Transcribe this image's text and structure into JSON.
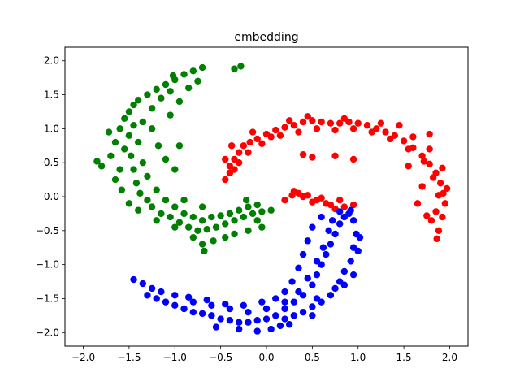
{
  "chart_data": {
    "type": "scatter",
    "title": "embedding",
    "xlabel": "",
    "ylabel": "",
    "xlim": [
      -2.2,
      2.2
    ],
    "ylim": [
      -2.2,
      2.2
    ],
    "xticks": [
      -2.0,
      -1.5,
      -1.0,
      -0.5,
      0.0,
      0.5,
      1.0,
      1.5,
      2.0
    ],
    "xtick_labels": [
      "−2.0",
      "−1.5",
      "−1.0",
      "−0.5",
      "0.0",
      "0.5",
      "1.0",
      "1.5",
      "2.0"
    ],
    "yticks": [
      -2.0,
      -1.5,
      -1.0,
      -0.5,
      0.0,
      0.5,
      1.0,
      1.5,
      2.0
    ],
    "ytick_labels": [
      "−2.0",
      "−1.5",
      "−1.0",
      "−0.5",
      "0.0",
      "0.5",
      "1.0",
      "1.5",
      "2.0"
    ],
    "grid": false,
    "legend": "none",
    "series": [
      {
        "color": "#ff0000",
        "points": [
          [
            0.2,
            -0.05
          ],
          [
            0.28,
            0.02
          ],
          [
            0.35,
            0.05
          ],
          [
            0.45,
            0.02
          ],
          [
            0.55,
            -0.05
          ],
          [
            0.65,
            -0.1
          ],
          [
            0.75,
            -0.18
          ],
          [
            0.85,
            -0.15
          ],
          [
            0.95,
            -0.12
          ],
          [
            0.3,
            0.08
          ],
          [
            0.4,
            0.0
          ],
          [
            0.5,
            -0.08
          ],
          [
            0.6,
            -0.02
          ],
          [
            0.7,
            -0.12
          ],
          [
            0.8,
            -0.05
          ],
          [
            -0.45,
            0.25
          ],
          [
            -0.4,
            0.45
          ],
          [
            -0.35,
            0.55
          ],
          [
            -0.3,
            0.65
          ],
          [
            -0.25,
            0.75
          ],
          [
            -0.18,
            0.8
          ],
          [
            -0.1,
            0.85
          ],
          [
            0.0,
            0.92
          ],
          [
            0.1,
            0.98
          ],
          [
            0.2,
            1.02
          ],
          [
            0.3,
            1.05
          ],
          [
            0.4,
            1.1
          ],
          [
            0.5,
            1.12
          ],
          [
            0.6,
            1.1
          ],
          [
            0.7,
            1.08
          ],
          [
            0.8,
            1.08
          ],
          [
            0.9,
            1.1
          ],
          [
            1.0,
            1.08
          ],
          [
            1.1,
            1.05
          ],
          [
            1.2,
            1.0
          ],
          [
            1.3,
            0.95
          ],
          [
            1.4,
            0.9
          ],
          [
            1.5,
            0.82
          ],
          [
            1.6,
            0.72
          ],
          [
            1.7,
            0.6
          ],
          [
            1.78,
            0.48
          ],
          [
            1.85,
            0.35
          ],
          [
            1.9,
            0.2
          ],
          [
            1.93,
            0.05
          ],
          [
            1.95,
            -0.1
          ],
          [
            1.92,
            -0.3
          ],
          [
            1.88,
            -0.5
          ],
          [
            1.86,
            -0.62
          ],
          [
            -0.4,
            0.35
          ],
          [
            -0.3,
            0.5
          ],
          [
            -0.2,
            0.65
          ],
          [
            -0.05,
            0.78
          ],
          [
            0.15,
            0.9
          ],
          [
            0.35,
            0.95
          ],
          [
            0.55,
            1.0
          ],
          [
            0.75,
            0.98
          ],
          [
            0.95,
            1.0
          ],
          [
            1.15,
            0.95
          ],
          [
            1.35,
            0.85
          ],
          [
            1.55,
            0.7
          ],
          [
            1.72,
            0.52
          ],
          [
            1.82,
            0.28
          ],
          [
            1.88,
            0.02
          ],
          [
            1.85,
            -0.22
          ],
          [
            -0.35,
            0.4
          ],
          [
            0.05,
            0.88
          ],
          [
            0.45,
            1.18
          ],
          [
            0.85,
            1.15
          ],
          [
            1.25,
            1.08
          ],
          [
            1.6,
            0.88
          ],
          [
            1.78,
            0.7
          ],
          [
            0.95,
            0.55
          ],
          [
            0.5,
            0.58
          ],
          [
            0.4,
            0.62
          ],
          [
            0.75,
            0.6
          ],
          [
            1.55,
            0.45
          ],
          [
            1.7,
            0.15
          ],
          [
            1.65,
            -0.1
          ],
          [
            1.75,
            -0.28
          ],
          [
            1.8,
            -0.35
          ],
          [
            -0.45,
            0.55
          ],
          [
            -0.38,
            0.75
          ],
          [
            -0.15,
            0.95
          ],
          [
            0.25,
            1.12
          ],
          [
            1.45,
            1.05
          ],
          [
            1.78,
            0.92
          ],
          [
            1.92,
            0.42
          ],
          [
            1.97,
            0.12
          ]
        ]
      },
      {
        "color": "#008000",
        "points": [
          [
            -1.85,
            0.52
          ],
          [
            -1.8,
            0.45
          ],
          [
            -1.7,
            0.6
          ],
          [
            -1.65,
            0.8
          ],
          [
            -1.6,
            1.0
          ],
          [
            -1.55,
            1.15
          ],
          [
            -1.5,
            1.25
          ],
          [
            -1.45,
            1.35
          ],
          [
            -1.4,
            1.42
          ],
          [
            -1.3,
            1.5
          ],
          [
            -1.2,
            1.58
          ],
          [
            -1.1,
            1.65
          ],
          [
            -1.0,
            1.72
          ],
          [
            -0.9,
            1.8
          ],
          [
            -0.8,
            1.85
          ],
          [
            -0.7,
            1.9
          ],
          [
            -0.35,
            1.88
          ],
          [
            -0.28,
            1.92
          ],
          [
            -1.5,
            0.9
          ],
          [
            -1.48,
            0.6
          ],
          [
            -1.45,
            0.4
          ],
          [
            -1.42,
            0.2
          ],
          [
            -1.38,
            0.05
          ],
          [
            -1.3,
            -0.05
          ],
          [
            -1.25,
            -0.15
          ],
          [
            -1.15,
            -0.25
          ],
          [
            -1.05,
            -0.3
          ],
          [
            -0.95,
            -0.38
          ],
          [
            -0.85,
            -0.45
          ],
          [
            -0.75,
            -0.5
          ],
          [
            -0.65,
            -0.48
          ],
          [
            -0.55,
            -0.45
          ],
          [
            -0.45,
            -0.4
          ],
          [
            -0.35,
            -0.35
          ],
          [
            -0.25,
            -0.3
          ],
          [
            -0.15,
            -0.25
          ],
          [
            -0.05,
            -0.22
          ],
          [
            0.05,
            -0.2
          ],
          [
            -0.1,
            -0.35
          ],
          [
            -1.6,
            0.4
          ],
          [
            -1.55,
            0.7
          ],
          [
            -1.4,
            0.8
          ],
          [
            -1.35,
            1.1
          ],
          [
            -1.25,
            1.3
          ],
          [
            -1.15,
            1.45
          ],
          [
            -1.05,
            1.55
          ],
          [
            -1.35,
            0.5
          ],
          [
            -1.3,
            0.3
          ],
          [
            -1.2,
            0.1
          ],
          [
            -1.1,
            -0.05
          ],
          [
            -1.0,
            -0.15
          ],
          [
            -0.9,
            -0.25
          ],
          [
            -0.8,
            -0.3
          ],
          [
            -0.7,
            -0.35
          ],
          [
            -0.6,
            -0.3
          ],
          [
            -0.5,
            -0.28
          ],
          [
            -0.4,
            -0.25
          ],
          [
            -0.3,
            -0.2
          ],
          [
            -0.2,
            -0.15
          ],
          [
            -0.1,
            -0.12
          ],
          [
            -1.65,
            0.25
          ],
          [
            -1.58,
            0.1
          ],
          [
            -1.5,
            -0.1
          ],
          [
            -1.4,
            -0.2
          ],
          [
            -1.2,
            -0.35
          ],
          [
            -1.0,
            -0.45
          ],
          [
            -0.8,
            -0.6
          ],
          [
            -0.7,
            -0.7
          ],
          [
            -0.68,
            -0.8
          ],
          [
            -0.58,
            -0.65
          ],
          [
            -0.45,
            -0.6
          ],
          [
            -0.35,
            -0.55
          ],
          [
            -0.2,
            -0.5
          ],
          [
            -0.05,
            -0.45
          ],
          [
            -1.25,
            1.0
          ],
          [
            -1.18,
            0.75
          ],
          [
            -1.1,
            0.55
          ],
          [
            -1.05,
            1.2
          ],
          [
            -0.95,
            1.4
          ],
          [
            -0.85,
            1.6
          ],
          [
            -1.45,
            1.05
          ],
          [
            -1.72,
            0.95
          ],
          [
            -0.95,
            0.75
          ],
          [
            -1.0,
            0.4
          ],
          [
            -0.9,
            -0.05
          ],
          [
            -0.7,
            -0.15
          ],
          [
            -0.22,
            -0.05
          ],
          [
            -1.02,
            1.78
          ],
          [
            -0.75,
            1.7
          ]
        ]
      },
      {
        "color": "#0000ff",
        "points": [
          [
            -1.45,
            -1.22
          ],
          [
            -1.35,
            -1.28
          ],
          [
            -1.3,
            -1.45
          ],
          [
            -1.2,
            -1.5
          ],
          [
            -1.1,
            -1.55
          ],
          [
            -1.0,
            -1.6
          ],
          [
            -0.9,
            -1.65
          ],
          [
            -0.8,
            -1.7
          ],
          [
            -0.7,
            -1.72
          ],
          [
            -0.6,
            -1.75
          ],
          [
            -0.5,
            -1.8
          ],
          [
            -0.4,
            -1.82
          ],
          [
            -0.3,
            -1.85
          ],
          [
            -0.2,
            -1.85
          ],
          [
            -0.1,
            -1.82
          ],
          [
            0.0,
            -1.8
          ],
          [
            0.1,
            -1.75
          ],
          [
            0.2,
            -1.65
          ],
          [
            0.3,
            -1.55
          ],
          [
            0.4,
            -1.45
          ],
          [
            0.5,
            -1.3
          ],
          [
            0.55,
            -1.15
          ],
          [
            0.6,
            -1.0
          ],
          [
            0.65,
            -0.85
          ],
          [
            0.7,
            -0.7
          ],
          [
            0.75,
            -0.55
          ],
          [
            0.8,
            -0.4
          ],
          [
            0.85,
            -0.3
          ],
          [
            0.9,
            -0.25
          ],
          [
            0.95,
            -0.35
          ],
          [
            0.98,
            -0.55
          ],
          [
            0.95,
            -0.75
          ],
          [
            0.92,
            -0.95
          ],
          [
            0.85,
            -1.1
          ],
          [
            0.8,
            -1.25
          ],
          [
            0.75,
            -1.35
          ],
          [
            0.7,
            -1.45
          ],
          [
            0.6,
            -1.55
          ],
          [
            0.5,
            -1.62
          ],
          [
            0.4,
            -1.7
          ],
          [
            0.3,
            -1.75
          ],
          [
            0.2,
            -1.8
          ],
          [
            -1.0,
            -1.45
          ],
          [
            -0.8,
            -1.55
          ],
          [
            -0.6,
            -1.6
          ],
          [
            -0.4,
            -1.65
          ],
          [
            -0.2,
            -1.7
          ],
          [
            0.0,
            -1.65
          ],
          [
            0.2,
            -1.55
          ],
          [
            0.35,
            -1.4
          ],
          [
            0.45,
            -1.2
          ],
          [
            0.55,
            -0.95
          ],
          [
            0.62,
            -0.75
          ],
          [
            0.68,
            -0.5
          ],
          [
            0.72,
            -0.35
          ],
          [
            0.6,
            -0.3
          ],
          [
            0.5,
            -0.45
          ],
          [
            0.45,
            -0.65
          ],
          [
            0.4,
            -0.85
          ],
          [
            0.35,
            -1.05
          ],
          [
            0.28,
            -1.25
          ],
          [
            0.2,
            -1.4
          ],
          [
            0.1,
            -1.5
          ],
          [
            -0.05,
            -1.55
          ],
          [
            -0.25,
            -1.6
          ],
          [
            -0.45,
            -1.58
          ],
          [
            -0.65,
            -1.52
          ],
          [
            -0.85,
            -1.48
          ],
          [
            -1.15,
            -1.4
          ],
          [
            -1.25,
            -1.35
          ],
          [
            -0.55,
            -1.92
          ],
          [
            -0.3,
            -1.95
          ],
          [
            -0.1,
            -1.98
          ],
          [
            0.05,
            -1.95
          ],
          [
            0.25,
            -1.88
          ],
          [
            0.55,
            -1.5
          ],
          [
            0.85,
            -1.3
          ],
          [
            0.95,
            -1.15
          ],
          [
            1.0,
            -0.8
          ],
          [
            1.02,
            -0.6
          ],
          [
            0.92,
            -0.2
          ],
          [
            0.8,
            -0.22
          ],
          [
            0.5,
            -1.75
          ],
          [
            0.15,
            -1.9
          ]
        ]
      }
    ]
  }
}
